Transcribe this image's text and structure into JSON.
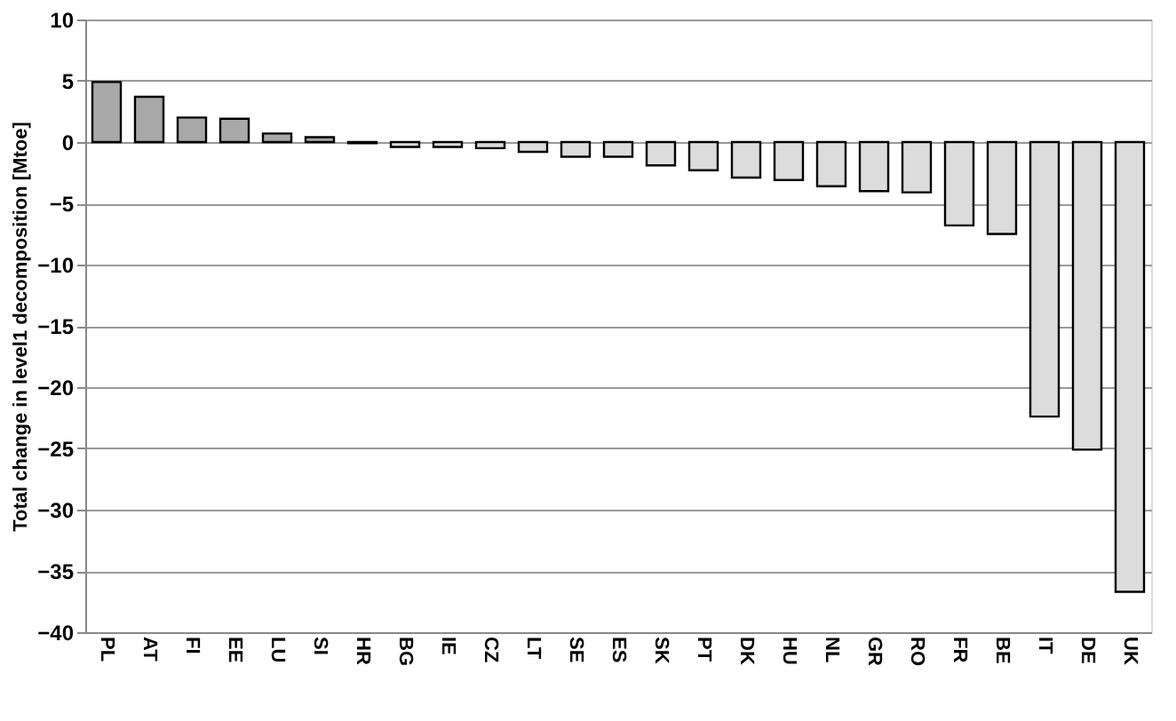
{
  "chart_data": {
    "type": "bar",
    "ylabel": "Total change in level1 decomposition [Mtoe]",
    "categories": [
      "PL",
      "AT",
      "FI",
      "EE",
      "LU",
      "SI",
      "HR",
      "BG",
      "IE",
      "CZ",
      "LT",
      "SE",
      "ES",
      "SK",
      "PT",
      "DK",
      "HU",
      "NL",
      "GR",
      "RO",
      "FR",
      "BE",
      "IT",
      "DE",
      "UK"
    ],
    "values": [
      4.9,
      3.7,
      2.0,
      1.9,
      0.7,
      0.4,
      -0.1,
      -0.4,
      -0.4,
      -0.5,
      -0.8,
      -1.2,
      -1.2,
      -1.9,
      -2.3,
      -2.9,
      -3.1,
      -3.6,
      -4.0,
      -4.1,
      -6.8,
      -7.5,
      -22.4,
      -25.1,
      -36.7
    ],
    "colors": [
      "#a8a8a8",
      "#a8a8a8",
      "#a8a8a8",
      "#a8a8a8",
      "#a8a8a8",
      "#a8a8a8",
      "#dcdcdc",
      "#dcdcdc",
      "#dcdcdc",
      "#dcdcdc",
      "#dcdcdc",
      "#dcdcdc",
      "#dcdcdc",
      "#dcdcdc",
      "#dcdcdc",
      "#dcdcdc",
      "#dcdcdc",
      "#dcdcdc",
      "#dcdcdc",
      "#dcdcdc",
      "#dcdcdc",
      "#dcdcdc",
      "#dcdcdc",
      "#dcdcdc",
      "#dcdcdc"
    ],
    "ylim": [
      -40,
      10
    ],
    "yticks": [
      -40,
      -35,
      -30,
      -25,
      -20,
      -15,
      -10,
      -5,
      0,
      5,
      10
    ],
    "grid": "y"
  }
}
